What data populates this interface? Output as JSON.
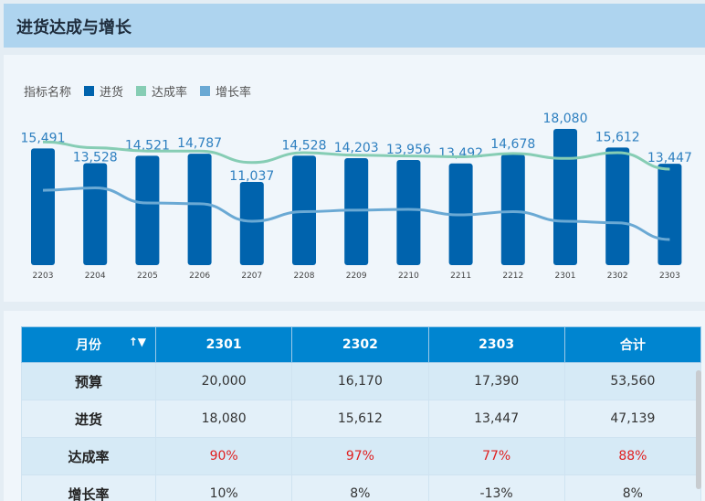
{
  "title": "进货达成与增长",
  "legend": {
    "label": "指标名称",
    "items": [
      {
        "name": "进货",
        "color": "#0063ad"
      },
      {
        "name": "达成率",
        "color": "#86cdb4"
      },
      {
        "name": "增长率",
        "color": "#6aa9d4"
      }
    ]
  },
  "chart_data": {
    "type": "bar+line",
    "categories": [
      "2203",
      "2204",
      "2205",
      "2206",
      "2207",
      "2208",
      "2209",
      "2210",
      "2211",
      "2212",
      "2301",
      "2302",
      "2303"
    ],
    "series": [
      {
        "name": "进货",
        "type": "bar",
        "values": [
          15491,
          13528,
          14521,
          14787,
          11037,
          14528,
          14203,
          13956,
          13492,
          14678,
          18080,
          15612,
          13447
        ],
        "labels": [
          "15,491",
          "13,528",
          "14,521",
          "14,787",
          "11,037",
          "14,528",
          "14,203",
          "13,956",
          "13,492",
          "14,678",
          "18,080",
          "15,612",
          "13,447"
        ]
      },
      {
        "name": "达成率",
        "type": "line",
        "unit": "%",
        "values": [
          110,
          103,
          99,
          99,
          85,
          97,
          94,
          93,
          92,
          96,
          90,
          97,
          77
        ]
      },
      {
        "name": "增长率",
        "type": "line",
        "unit": "%",
        "values": [
          49,
          52,
          33,
          32,
          10,
          22,
          24,
          25,
          18,
          22,
          10,
          8,
          -13
        ]
      }
    ]
  },
  "table": {
    "corner": "月份",
    "sort_icon": "sort-filter-icon",
    "headers": [
      "2301",
      "2302",
      "2303",
      "合计"
    ],
    "rows": [
      {
        "label": "预算",
        "cells": [
          "20,000",
          "16,170",
          "17,390",
          "53,560"
        ],
        "red": false
      },
      {
        "label": "进货",
        "cells": [
          "18,080",
          "15,612",
          "13,447",
          "47,139"
        ],
        "red": false
      },
      {
        "label": "达成率",
        "cells": [
          "90%",
          "97%",
          "77%",
          "88%"
        ],
        "red": true
      },
      {
        "label": "增长率",
        "cells": [
          "10%",
          "8%",
          "-13%",
          "8%"
        ],
        "red": false
      }
    ]
  }
}
